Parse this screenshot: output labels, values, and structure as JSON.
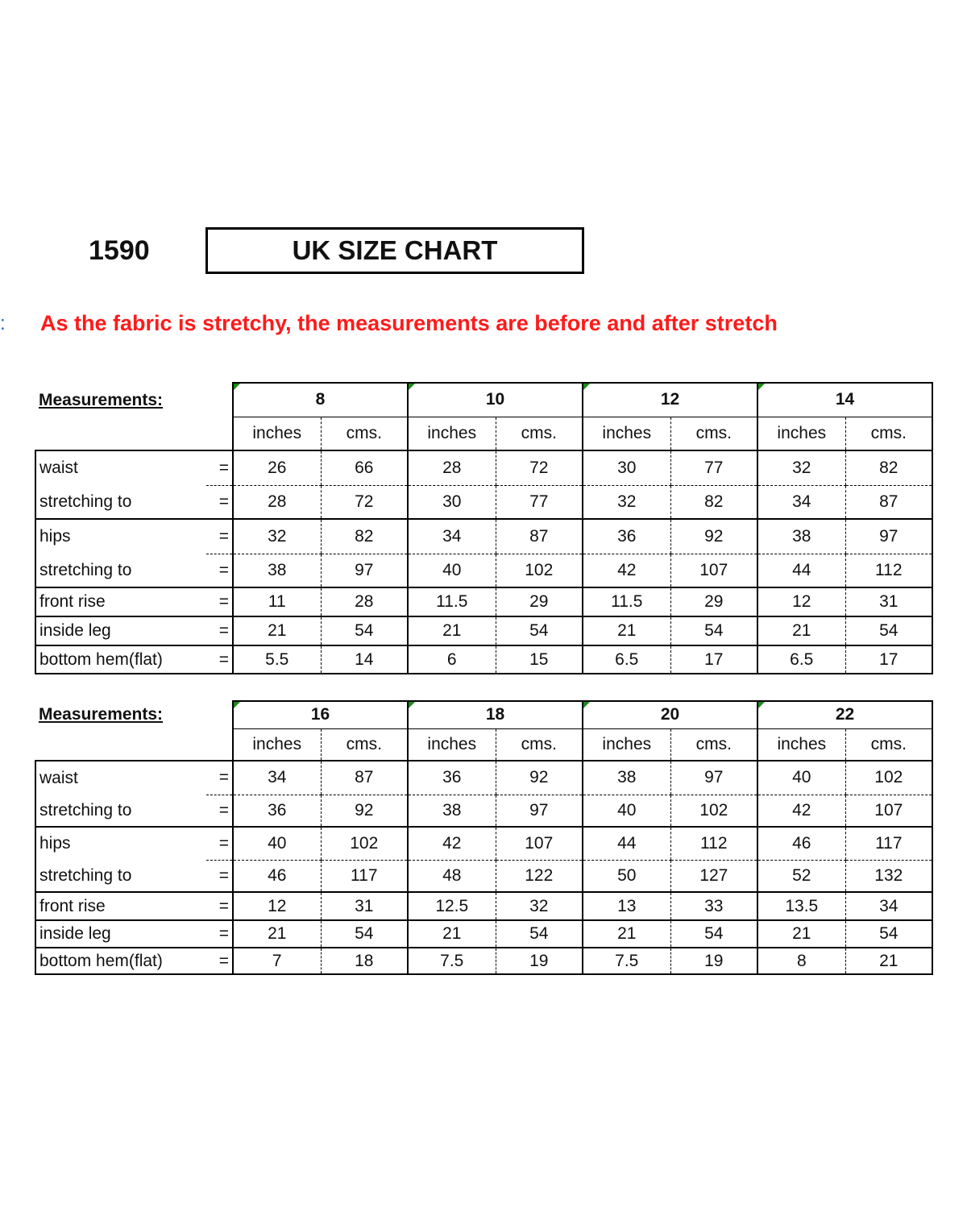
{
  "header": {
    "code": "1590",
    "title": "UK SIZE CHART",
    "colon": ":",
    "note": "As the fabric is stretchy, the measurements are before and after stretch"
  },
  "colors": {
    "note": "#ff1a1a",
    "comment_marker": "#1a8a1a"
  },
  "unit_labels": [
    "inches",
    "cms."
  ],
  "row_labels": [
    "waist",
    "stretching to",
    "hips",
    "stretching to",
    "front rise",
    "inside leg",
    "bottom hem(flat)"
  ],
  "equals": "=",
  "tables": [
    {
      "label": "Measurements:",
      "sizes": [
        "8",
        "10",
        "12",
        "14"
      ],
      "rows": [
        [
          "26",
          "66",
          "28",
          "72",
          "30",
          "77",
          "32",
          "82"
        ],
        [
          "28",
          "72",
          "30",
          "77",
          "32",
          "82",
          "34",
          "87"
        ],
        [
          "32",
          "82",
          "34",
          "87",
          "36",
          "92",
          "38",
          "97"
        ],
        [
          "38",
          "97",
          "40",
          "102",
          "42",
          "107",
          "44",
          "112"
        ],
        [
          "11",
          "28",
          "11.5",
          "29",
          "11.5",
          "29",
          "12",
          "31"
        ],
        [
          "21",
          "54",
          "21",
          "54",
          "21",
          "54",
          "21",
          "54"
        ],
        [
          "5.5",
          "14",
          "6",
          "15",
          "6.5",
          "17",
          "6.5",
          "17"
        ]
      ]
    },
    {
      "label": "Measurements:",
      "sizes": [
        "16",
        "18",
        "20",
        "22"
      ],
      "rows": [
        [
          "34",
          "87",
          "36",
          "92",
          "38",
          "97",
          "40",
          "102"
        ],
        [
          "36",
          "92",
          "38",
          "97",
          "40",
          "102",
          "42",
          "107"
        ],
        [
          "40",
          "102",
          "42",
          "107",
          "44",
          "112",
          "46",
          "117"
        ],
        [
          "46",
          "117",
          "48",
          "122",
          "50",
          "127",
          "52",
          "132"
        ],
        [
          "12",
          "31",
          "12.5",
          "32",
          "13",
          "33",
          "13.5",
          "34"
        ],
        [
          "21",
          "54",
          "21",
          "54",
          "21",
          "54",
          "21",
          "54"
        ],
        [
          "7",
          "18",
          "7.5",
          "19",
          "7.5",
          "19",
          "8",
          "21"
        ]
      ]
    }
  ]
}
